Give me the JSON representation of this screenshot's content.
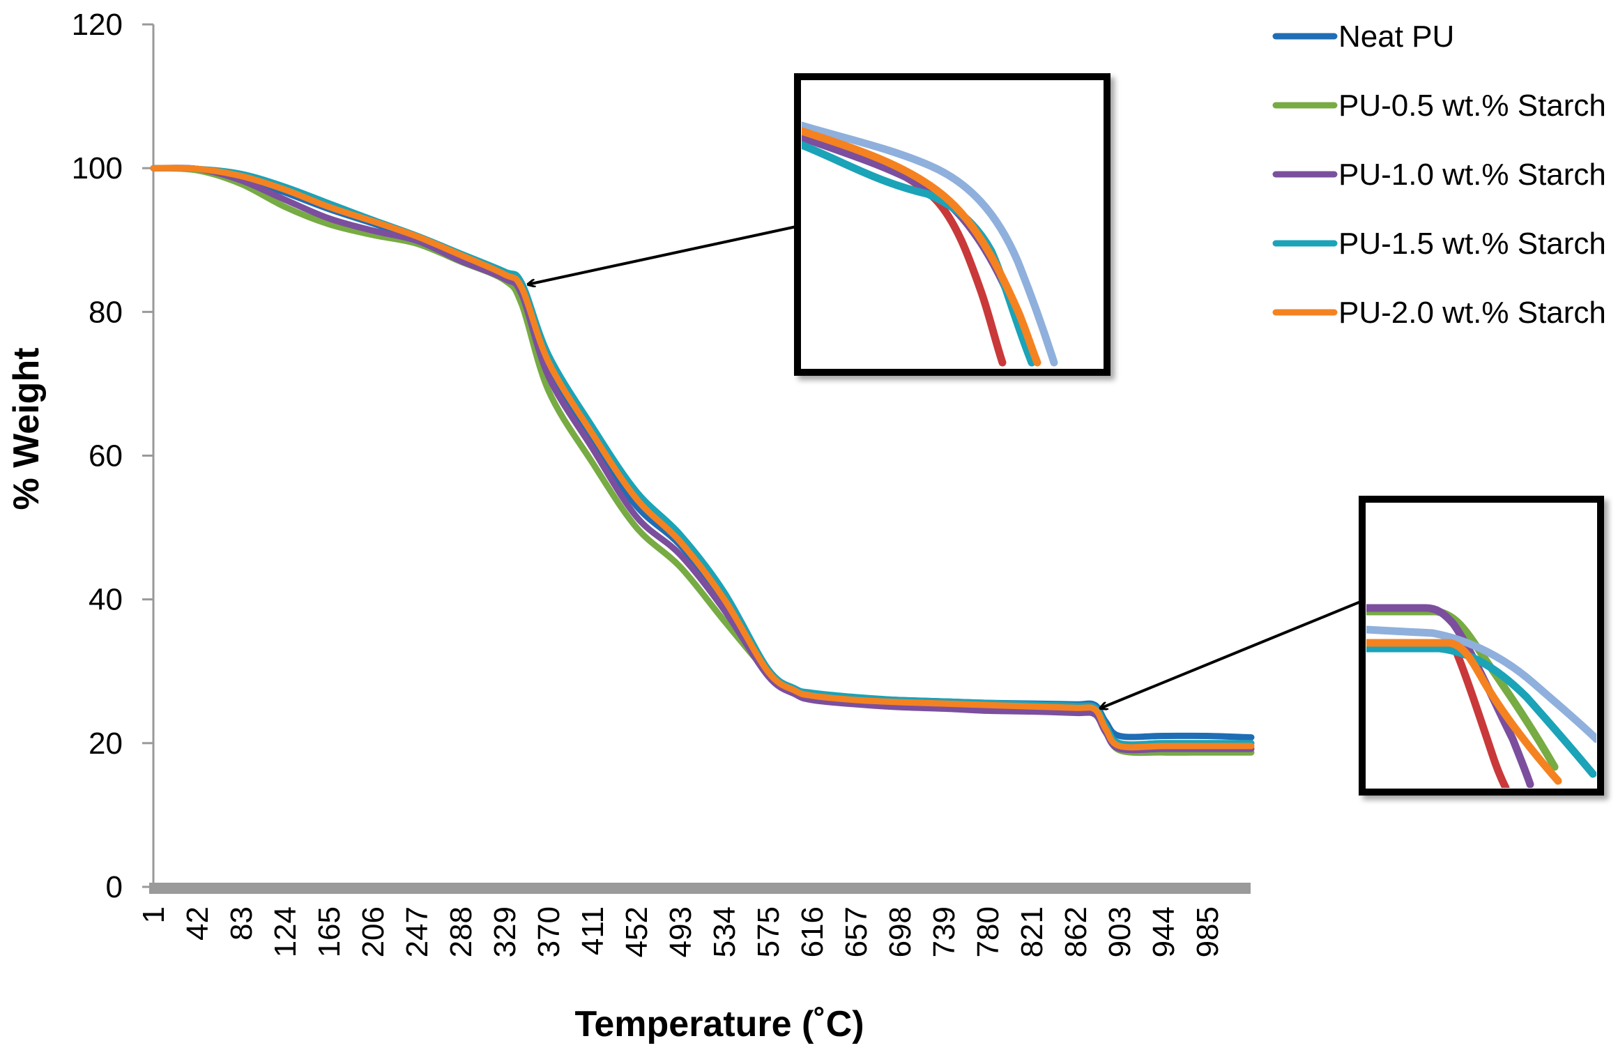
{
  "chart_data": {
    "type": "line",
    "title": "",
    "xlabel": "Temperature (˚C)",
    "ylabel": "% Weight",
    "x_ticks": [
      "1",
      "42",
      "83",
      "124",
      "165",
      "206",
      "247",
      "288",
      "329",
      "370",
      "411",
      "452",
      "493",
      "534",
      "575",
      "616",
      "657",
      "698",
      "739",
      "780",
      "821",
      "862",
      "903",
      "944",
      "985"
    ],
    "xlim": [
      1,
      1026
    ],
    "ylim": [
      0,
      120
    ],
    "y_ticks": [
      "0",
      "20",
      "40",
      "60",
      "80",
      "100",
      "120"
    ],
    "grid": false,
    "legend_position": "right",
    "series": [
      {
        "name": "Neat PU",
        "color": "#1f6db5",
        "x": [
          1,
          42,
          83,
          124,
          165,
          206,
          247,
          288,
          329,
          345,
          370,
          411,
          452,
          493,
          534,
          575,
          600,
          616,
          657,
          698,
          739,
          780,
          821,
          862,
          880,
          890,
          903,
          944,
          985,
          1026
        ],
        "y": [
          100,
          99.9,
          98.8,
          96.6,
          94.3,
          92.3,
          90.2,
          87.6,
          84.8,
          82.2,
          72,
          62,
          53,
          47.5,
          39.5,
          29.5,
          27.3,
          26.8,
          26.3,
          26,
          25.8,
          25.6,
          25.5,
          25.4,
          25.3,
          23,
          21,
          21,
          21,
          20.8
        ]
      },
      {
        "name": "PU-0.5 wt.% Starch",
        "color": "#77ab43",
        "x": [
          1,
          42,
          83,
          124,
          165,
          206,
          247,
          288,
          329,
          345,
          370,
          411,
          452,
          493,
          534,
          575,
          600,
          616,
          657,
          698,
          739,
          780,
          821,
          862,
          880,
          890,
          903,
          944,
          985,
          1026
        ],
        "y": [
          100,
          99.7,
          97.8,
          94.6,
          92.2,
          90.7,
          89.5,
          87,
          84.4,
          81,
          69,
          59,
          50,
          44.5,
          37,
          29.8,
          27,
          26.3,
          25.6,
          25.4,
          25.2,
          25,
          24.9,
          24.8,
          24.7,
          22,
          19,
          18.7,
          18.7,
          18.7
        ]
      },
      {
        "name": "PU-1.0 wt.% Starch",
        "color": "#7b4f9d",
        "x": [
          1,
          42,
          83,
          124,
          165,
          206,
          247,
          288,
          329,
          345,
          370,
          411,
          452,
          493,
          534,
          575,
          600,
          616,
          657,
          698,
          739,
          780,
          821,
          862,
          880,
          890,
          903,
          944,
          985,
          1026
        ],
        "y": [
          100,
          99.9,
          98.3,
          95.6,
          93,
          91.3,
          89.9,
          87.1,
          84.6,
          82.4,
          71,
          61,
          51.5,
          46.2,
          38.5,
          29.3,
          26.8,
          26,
          25.4,
          25,
          24.8,
          24.5,
          24.4,
          24.2,
          24,
          21.5,
          19.2,
          19.2,
          19.2,
          19.2
        ]
      },
      {
        "name": "PU-1.5 wt.% Starch",
        "color": "#1ba3b8",
        "x": [
          1,
          42,
          83,
          124,
          165,
          206,
          247,
          288,
          329,
          345,
          370,
          411,
          452,
          493,
          534,
          575,
          600,
          616,
          657,
          698,
          739,
          780,
          821,
          862,
          880,
          890,
          903,
          944,
          985,
          1026
        ],
        "y": [
          100,
          99.9,
          99.2,
          97.4,
          95.1,
          92.8,
          90.6,
          88.1,
          85.6,
          84,
          74,
          64,
          55,
          49,
          41,
          30.3,
          27.6,
          27,
          26.4,
          26,
          25.8,
          25.6,
          25.4,
          25.2,
          25,
          22.5,
          20,
          20,
          20,
          20
        ]
      },
      {
        "name": "PU-2.0 wt.% Starch",
        "color": "#f58220",
        "x": [
          1,
          42,
          83,
          124,
          165,
          206,
          247,
          288,
          329,
          345,
          370,
          411,
          452,
          493,
          534,
          575,
          600,
          616,
          657,
          698,
          739,
          780,
          821,
          862,
          880,
          890,
          903,
          944,
          985,
          1026
        ],
        "y": [
          100,
          99.9,
          98.9,
          97,
          94.6,
          92.6,
          90.5,
          87.9,
          85.2,
          83.3,
          73,
          63,
          54,
          48,
          40,
          29.9,
          27.3,
          26.6,
          26,
          25.7,
          25.5,
          25.3,
          25.1,
          24.9,
          24.7,
          22,
          19.6,
          19.6,
          19.6,
          19.6
        ]
      }
    ],
    "annotations": [
      {
        "type": "zoom-inset",
        "points_to": {
          "x": 345,
          "y": 84
        },
        "label": ""
      },
      {
        "type": "zoom-inset",
        "points_to": {
          "x": 880,
          "y": 25
        },
        "label": ""
      }
    ]
  }
}
